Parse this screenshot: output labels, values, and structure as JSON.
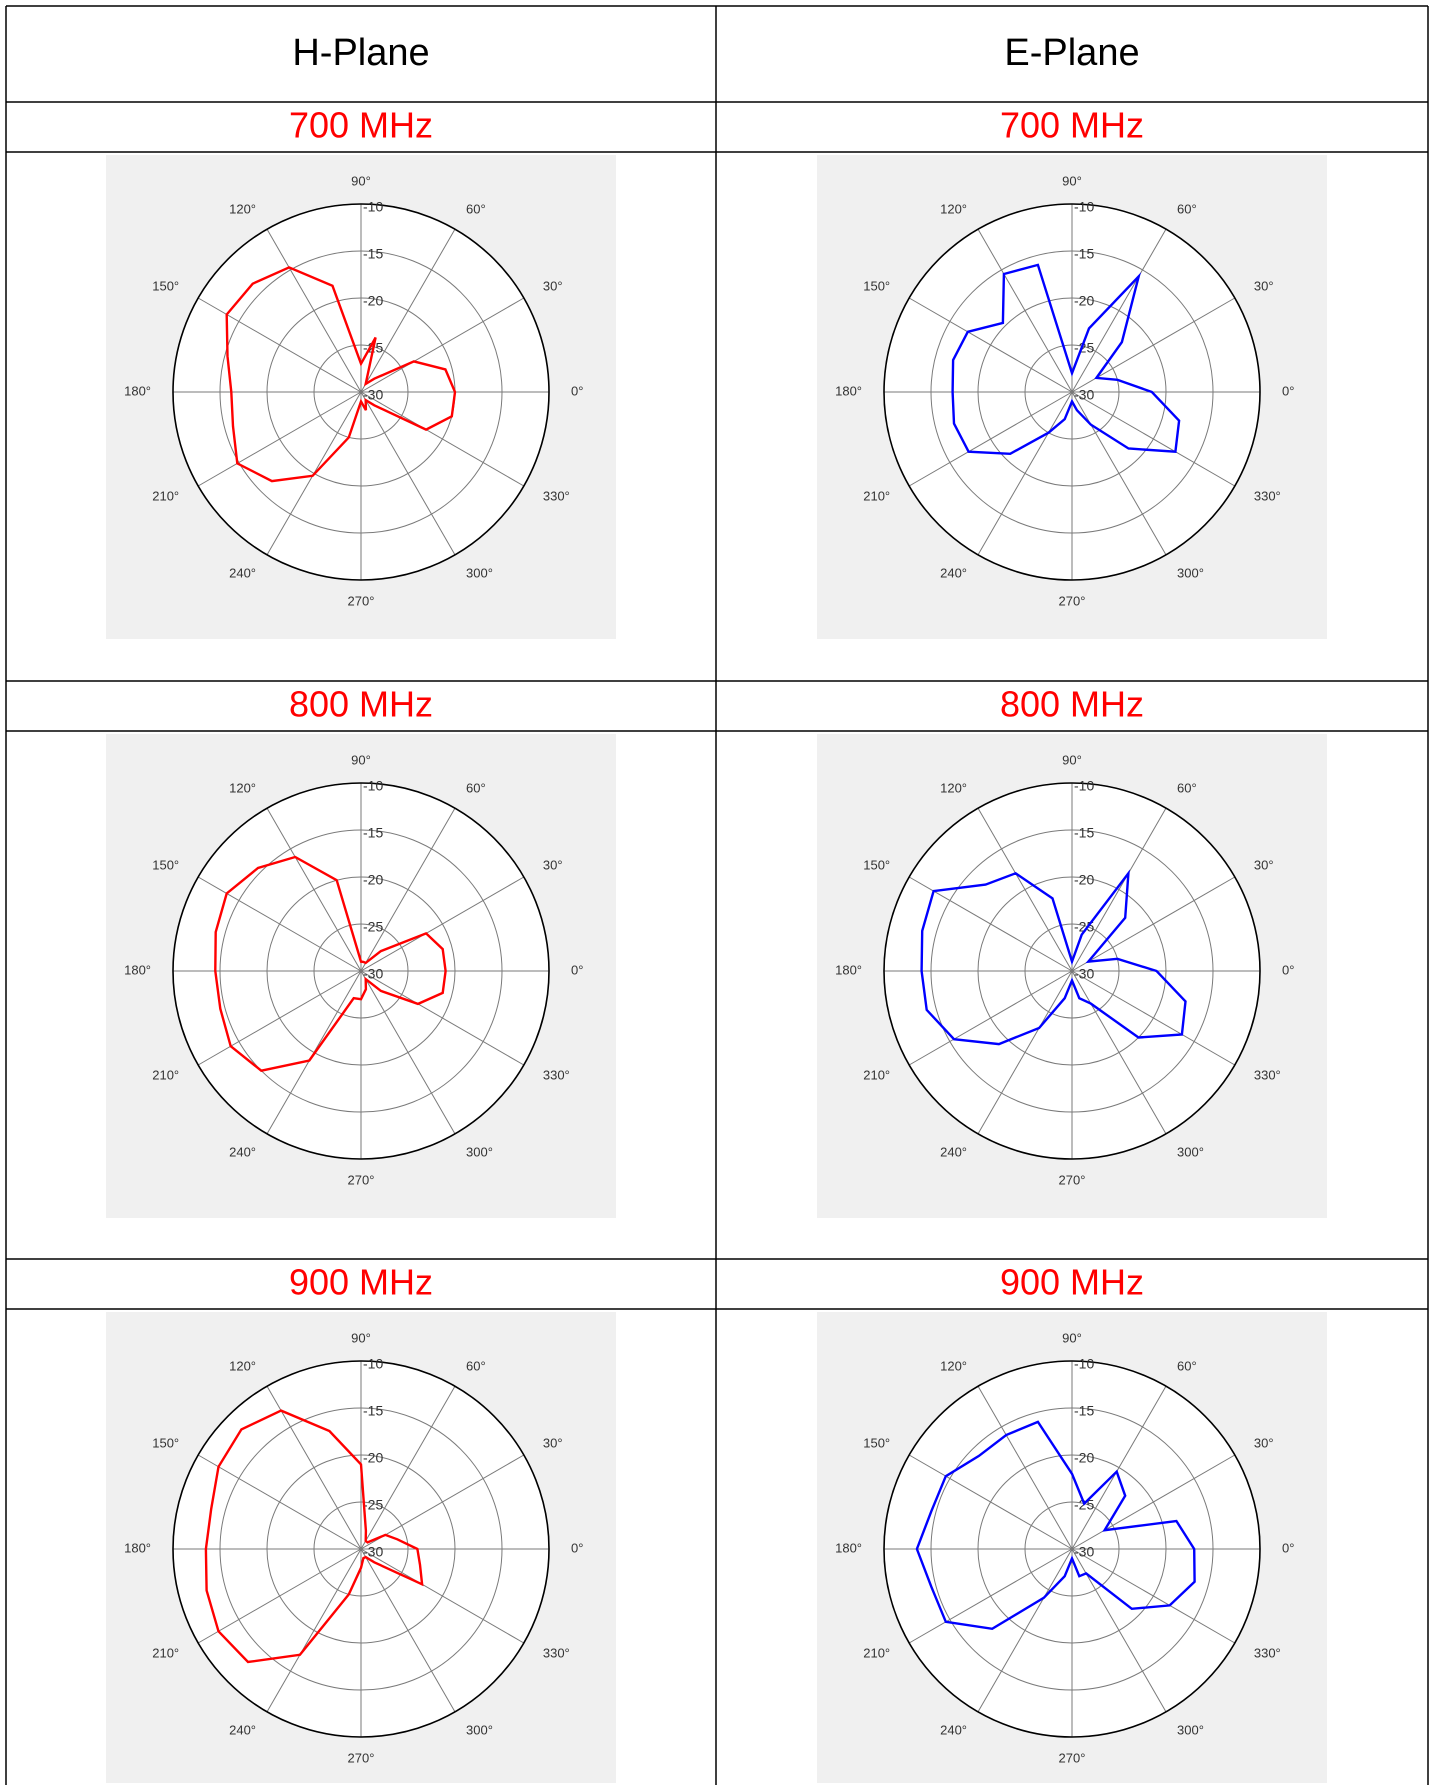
{
  "header": [
    "H-Plane",
    "E-Plane"
  ],
  "chart_data": [
    {
      "type": "polar",
      "title": "700 MHz",
      "color": "#ff0000",
      "x": [
        0,
        15,
        30,
        45,
        60,
        75,
        90,
        105,
        120,
        135,
        150,
        165,
        180,
        195,
        210,
        225,
        240,
        255,
        270,
        285,
        300,
        315,
        330,
        345
      ],
      "values": [
        -20,
        -20.7,
        -23.5,
        -28,
        -29,
        -24,
        -27,
        -18.3,
        -14.7,
        -13.7,
        -13.5,
        -15.3,
        -16.2,
        -15.9,
        -14.8,
        -16.6,
        -19.7,
        -25,
        -29,
        -28,
        -29,
        -28,
        -22,
        -20
      ],
      "xlim": [
        0,
        360
      ],
      "xticks": [
        {
          "value": 0,
          "label": "0°"
        },
        {
          "value": 30,
          "label": "30°"
        },
        {
          "value": 60,
          "label": "60°"
        },
        {
          "value": 90,
          "label": "90°"
        },
        {
          "value": 120,
          "label": "120°"
        },
        {
          "value": 150,
          "label": "150°"
        },
        {
          "value": 180,
          "label": "180°"
        },
        {
          "value": 210,
          "label": "210°"
        },
        {
          "value": 240,
          "label": "240°"
        },
        {
          "value": 270,
          "label": "270°"
        },
        {
          "value": 300,
          "label": "300°"
        },
        {
          "value": 330,
          "label": "330°"
        }
      ],
      "ylim": [
        -30,
        -10
      ],
      "yticks": [
        -30,
        -25,
        -20,
        -15,
        -10
      ]
    },
    {
      "type": "polar",
      "title": "700 MHz",
      "color": "#0000ff",
      "x": [
        0,
        15,
        30,
        45,
        60,
        75,
        90,
        105,
        120,
        135,
        150,
        165,
        180,
        195,
        210,
        225,
        240,
        255,
        270,
        285,
        300,
        315,
        330,
        345
      ],
      "values": [
        -21.5,
        -25,
        -27,
        -22.5,
        -15.8,
        -23,
        -28,
        -16,
        -15.5,
        -19.6,
        -17.2,
        -16.9,
        -17.3,
        -17,
        -17.3,
        -20.7,
        -25,
        -27,
        -29,
        -28,
        -26,
        -21.5,
        -17.3,
        -18.2
      ],
      "xlim": [
        0,
        360
      ],
      "xticks": [
        {
          "value": 0,
          "label": "0°"
        },
        {
          "value": 30,
          "label": "30°"
        },
        {
          "value": 60,
          "label": "60°"
        },
        {
          "value": 90,
          "label": "90°"
        },
        {
          "value": 120,
          "label": "120°"
        },
        {
          "value": 150,
          "label": "150°"
        },
        {
          "value": 180,
          "label": "180°"
        },
        {
          "value": 210,
          "label": "210°"
        },
        {
          "value": 240,
          "label": "240°"
        },
        {
          "value": 270,
          "label": "270°"
        },
        {
          "value": 300,
          "label": "300°"
        },
        {
          "value": 330,
          "label": "330°"
        }
      ],
      "ylim": [
        -30,
        -10
      ],
      "yticks": [
        -30,
        -25,
        -20,
        -15,
        -10
      ]
    },
    {
      "type": "polar",
      "title": "800 MHz",
      "color": "#ff0000",
      "x": [
        0,
        15,
        30,
        45,
        60,
        75,
        90,
        105,
        120,
        135,
        150,
        165,
        180,
        195,
        210,
        225,
        240,
        255,
        270,
        285,
        300,
        315,
        330,
        345
      ],
      "values": [
        -21,
        -21,
        -22,
        -27,
        -29,
        -29,
        -29,
        -20,
        -16,
        -14.5,
        -13.5,
        -14,
        -14.5,
        -14.5,
        -14,
        -15,
        -19,
        -27,
        -27,
        -28,
        -29,
        -27,
        -23,
        -21
      ],
      "xlim": [
        0,
        360
      ],
      "xticks": [
        {
          "value": 0,
          "label": "0°"
        },
        {
          "value": 30,
          "label": "30°"
        },
        {
          "value": 60,
          "label": "60°"
        },
        {
          "value": 90,
          "label": "90°"
        },
        {
          "value": 120,
          "label": "120°"
        },
        {
          "value": 150,
          "label": "150°"
        },
        {
          "value": 180,
          "label": "180°"
        },
        {
          "value": 210,
          "label": "210°"
        },
        {
          "value": 240,
          "label": "240°"
        },
        {
          "value": 270,
          "label": "270°"
        },
        {
          "value": 300,
          "label": "300°"
        },
        {
          "value": 330,
          "label": "330°"
        }
      ],
      "ylim": [
        -30,
        -10
      ],
      "yticks": [
        -30,
        -25,
        -20,
        -15,
        -10
      ]
    },
    {
      "type": "polar",
      "title": "800 MHz",
      "color": "#0000ff",
      "x": [
        0,
        15,
        30,
        45,
        60,
        75,
        90,
        105,
        120,
        135,
        150,
        165,
        180,
        195,
        210,
        225,
        240,
        255,
        270,
        285,
        300,
        315,
        330,
        345
      ],
      "values": [
        -21,
        -25,
        -28,
        -22,
        -18,
        -26,
        -29,
        -22,
        -18,
        -17,
        -13,
        -13.5,
        -14,
        -14,
        -15.5,
        -19,
        -23,
        -27,
        -29,
        -27,
        -26,
        -20,
        -16.5,
        -17.5
      ],
      "xlim": [
        0,
        360
      ],
      "xticks": [
        {
          "value": 0,
          "label": "0°"
        },
        {
          "value": 30,
          "label": "30°"
        },
        {
          "value": 60,
          "label": "60°"
        },
        {
          "value": 90,
          "label": "90°"
        },
        {
          "value": 120,
          "label": "120°"
        },
        {
          "value": 150,
          "label": "150°"
        },
        {
          "value": 180,
          "label": "180°"
        },
        {
          "value": 210,
          "label": "210°"
        },
        {
          "value": 240,
          "label": "240°"
        },
        {
          "value": 270,
          "label": "270°"
        },
        {
          "value": 300,
          "label": "300°"
        },
        {
          "value": 330,
          "label": "330°"
        }
      ],
      "ylim": [
        -30,
        -10
      ],
      "yticks": [
        -30,
        -25,
        -20,
        -15,
        -10
      ]
    },
    {
      "type": "polar",
      "title": "900 MHz",
      "color": "#ff0000",
      "x": [
        0,
        15,
        30,
        45,
        60,
        75,
        90,
        105,
        120,
        135,
        150,
        165,
        180,
        195,
        210,
        225,
        240,
        255,
        270,
        285,
        300,
        315,
        330,
        345
      ],
      "values": [
        -24,
        -26,
        -27,
        -29,
        -29,
        -28,
        -21,
        -17,
        -13,
        -12,
        -12.5,
        -13.5,
        -13.5,
        -13,
        -12.5,
        -13,
        -17,
        -25,
        -28,
        -29,
        -29,
        -28,
        -22.5,
        -23.5
      ],
      "xlim": [
        0,
        360
      ],
      "xticks": [
        {
          "value": 0,
          "label": "0°"
        },
        {
          "value": 30,
          "label": "30°"
        },
        {
          "value": 60,
          "label": "60°"
        },
        {
          "value": 90,
          "label": "90°"
        },
        {
          "value": 120,
          "label": "120°"
        },
        {
          "value": 150,
          "label": "150°"
        },
        {
          "value": 180,
          "label": "180°"
        },
        {
          "value": 210,
          "label": "210°"
        },
        {
          "value": 240,
          "label": "240°"
        },
        {
          "value": 270,
          "label": "270°"
        },
        {
          "value": 300,
          "label": "300°"
        },
        {
          "value": 330,
          "label": "330°"
        }
      ],
      "ylim": [
        -30,
        -10
      ],
      "yticks": [
        -30,
        -25,
        -20,
        -15,
        -10
      ]
    },
    {
      "type": "polar",
      "title": "900 MHz",
      "color": "#0000ff",
      "x": [
        0,
        15,
        30,
        45,
        60,
        75,
        90,
        105,
        120,
        135,
        150,
        165,
        180,
        195,
        210,
        225,
        240,
        255,
        270,
        285,
        300,
        315,
        330,
        345
      ],
      "values": [
        -17,
        -18.5,
        -26,
        -22,
        -20.5,
        -25,
        -22,
        -16,
        -16,
        -16,
        -14.5,
        -14.5,
        -13.5,
        -14.5,
        -14.5,
        -18,
        -24,
        -27,
        -29,
        -27,
        -27,
        -21,
        -18,
        -16.5
      ],
      "xlim": [
        0,
        360
      ],
      "xticks": [
        {
          "value": 0,
          "label": "0°"
        },
        {
          "value": 30,
          "label": "30°"
        },
        {
          "value": 60,
          "label": "60°"
        },
        {
          "value": 90,
          "label": "90°"
        },
        {
          "value": 120,
          "label": "120°"
        },
        {
          "value": 150,
          "label": "150°"
        },
        {
          "value": 180,
          "label": "180°"
        },
        {
          "value": 210,
          "label": "210°"
        },
        {
          "value": 240,
          "label": "240°"
        },
        {
          "value": 270,
          "label": "270°"
        },
        {
          "value": 300,
          "label": "300°"
        },
        {
          "value": 330,
          "label": "330°"
        }
      ],
      "ylim": [
        -30,
        -10
      ],
      "yticks": [
        -30,
        -25,
        -20,
        -15,
        -10
      ]
    }
  ]
}
